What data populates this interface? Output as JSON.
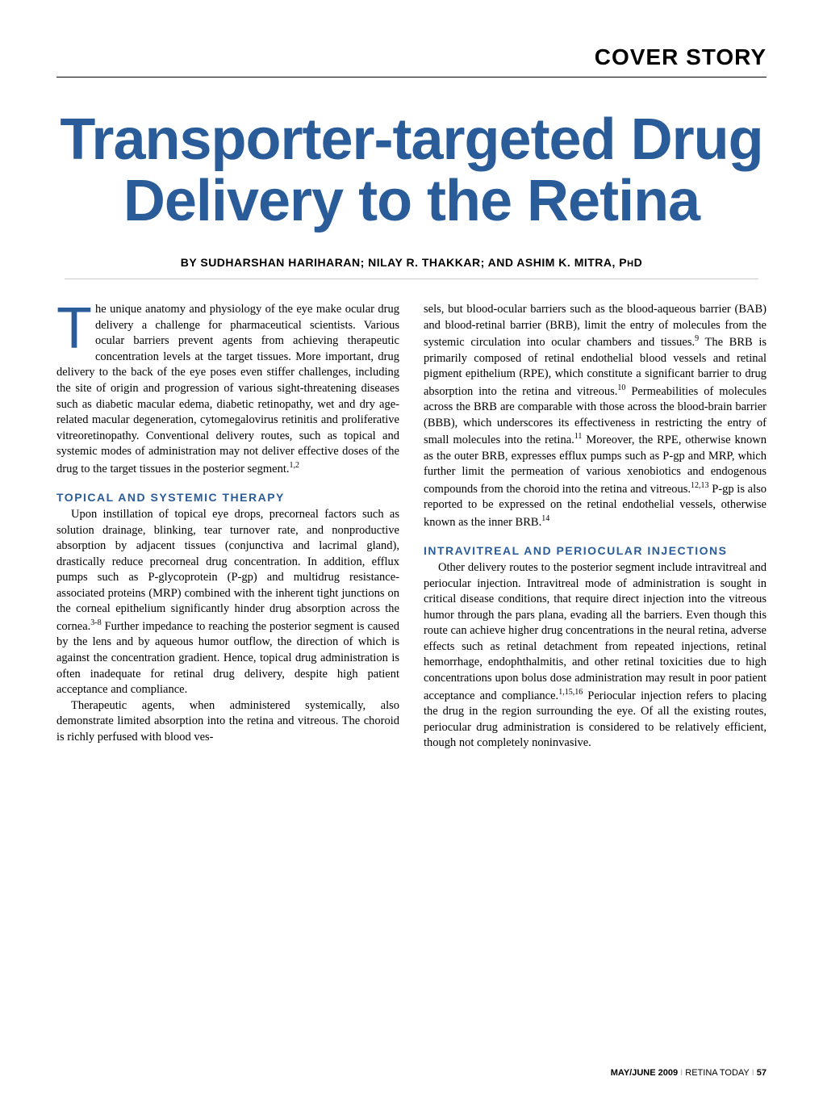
{
  "section_header": "COVER STORY",
  "title": "Transporter-targeted Drug Delivery to the Retina",
  "byline": "BY SUDHARSHAN HARIHARAN; NILAY R. THAKKAR; AND ASHIM K. MITRA, P",
  "byline_suffix": "H",
  "byline_end": "D",
  "colors": {
    "brand_blue": "#2a5c9a",
    "text": "#000000",
    "rule_light": "#cccccc",
    "background": "#ffffff"
  },
  "typography": {
    "title_fontsize": 72,
    "body_fontsize": 14.5,
    "subhead_fontsize": 14,
    "byline_fontsize": 14,
    "section_fontsize": 28,
    "footer_fontsize": 11
  },
  "left_column": {
    "dropcap": "T",
    "intro": "he unique anatomy and physiology of the eye make ocular drug delivery a challenge for pharmaceutical scientists. Various ocular barriers prevent agents from achieving therapeutic concentration levels at the target tissues. More important, drug delivery to the back of the eye poses even stiffer challenges, including the site of origin and progression of various sight-threatening diseases such as diabetic macular edema, diabetic retinopathy, wet and dry age-related macular degeneration, cytomegalovirus retinitis and proliferative vitreoretinopathy. Conventional delivery routes, such as topical and systemic modes of administration may not deliver effective doses of the drug to the target tissues in the posterior segment.",
    "intro_ref": "1,2",
    "subhead1": "TOPICAL AND SYSTEMIC THERAPY",
    "para1": "Upon instillation of topical eye drops, precorneal factors such as solution drainage, blinking, tear turnover rate, and nonproductive absorption by adjacent tissues (conjunctiva and lacrimal gland), drastically reduce precorneal drug concentration. In addition, efflux pumps such as P-glycoprotein (P-gp) and multidrug resistance-associated proteins (MRP) combined with the inherent tight junctions on the corneal epithelium significantly hinder drug absorption across the cornea.",
    "para1_ref": "3-8",
    "para1_cont": " Further impedance to reaching the posterior segment is caused by the lens and by aqueous humor outflow, the direction of which is against the concentration gradient. Hence, topical drug administration is often inadequate for retinal drug delivery, despite high patient acceptance and compliance.",
    "para2": "Therapeutic agents, when administered systemically, also demonstrate limited absorption into the retina and vitreous. The choroid is richly perfused with blood ves-"
  },
  "right_column": {
    "para1a": "sels, but blood-ocular barriers such as the blood-aqueous barrier (BAB) and blood-retinal barrier (BRB), limit the entry of molecules from the systemic circulation into ocular chambers and tissues.",
    "ref1": "9",
    "para1b": " The BRB is primarily composed of retinal endothelial blood vessels and retinal pigment epithelium (RPE), which constitute a significant barrier to drug absorption into the retina and vitreous.",
    "ref2": "10",
    "para1c": " Permeabilities of molecules across the BRB are comparable with those across the blood-brain barrier (BBB), which underscores its effectiveness in restricting the entry of small molecules into the retina.",
    "ref3": "11",
    "para1d": " Moreover, the RPE, otherwise known as the outer BRB, expresses efflux pumps such as P-gp and MRP, which further limit the permeation of various xenobiotics and endogenous compounds from the choroid into the retina and vitreous.",
    "ref4": "12,13",
    "para1e": " P-gp is also reported to be expressed on the retinal endothelial vessels, otherwise known as the inner BRB.",
    "ref5": "14",
    "subhead2": "INTRAVITREAL AND PERIOCULAR INJECTIONS",
    "para2a": "Other delivery routes to the posterior segment include intravitreal and periocular injection. Intravitreal mode of administration is sought in critical disease conditions, that require direct injection into the vitreous humor through the pars plana, evading all the barriers. Even though this route can achieve higher drug concentrations in the neural retina, adverse effects such as retinal detachment from repeated injections, retinal hemorrhage, endophthalmitis, and other retinal toxicities due to high concentrations upon bolus dose administration may result in poor patient acceptance and compliance.",
    "ref6": "1,15,16",
    "para2b": " Periocular injection refers to placing the drug in the region surrounding the eye. Of all the existing routes, periocular drug administration is considered to be relatively efficient, though not completely noninvasive."
  },
  "footer": {
    "issue": "MAY/JUNE 2009",
    "publication": "RETINA TODAY",
    "page": "57"
  }
}
